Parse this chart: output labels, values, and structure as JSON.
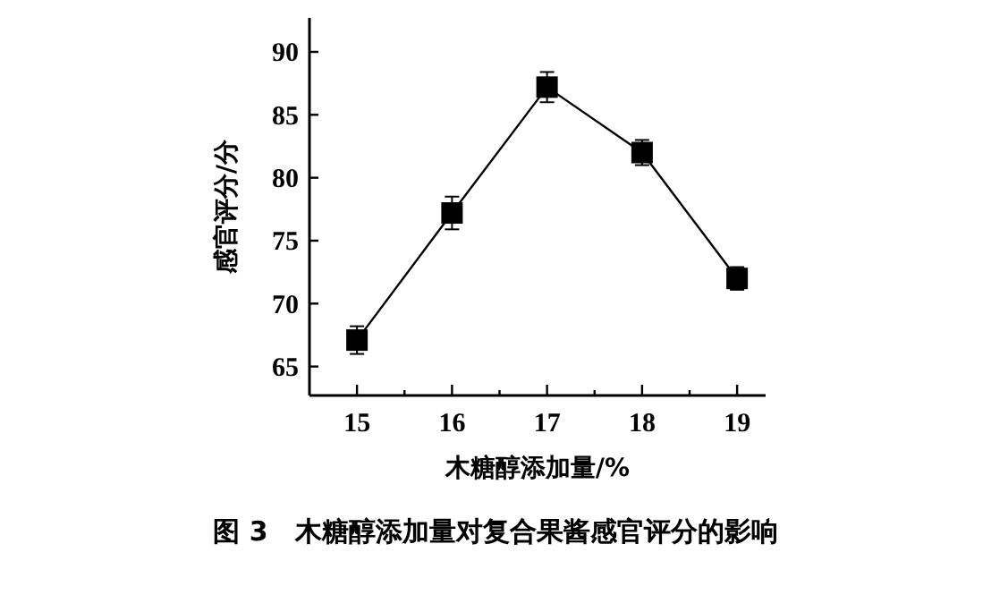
{
  "chart_data": {
    "type": "line",
    "xlabel": "木糖醇添加量/%",
    "ylabel": "感官评分/分",
    "annotations": [
      "图 3　木糖醇添加量对复合果酱感官评分的影响"
    ],
    "x": [
      15,
      16,
      17,
      18,
      19
    ],
    "series": [
      {
        "color": "#000000",
        "values": [
          67.1,
          77.2,
          87.2,
          82.0,
          72.0
        ],
        "errors": [
          1.1,
          1.3,
          1.2,
          1.0,
          0.9
        ]
      }
    ],
    "marker": "square",
    "line_style": "solid",
    "grid": false,
    "xlim": [
      14.5,
      19.3
    ],
    "xticks": [
      15,
      {
        "value": 15.5,
        "label": null
      },
      16,
      {
        "value": 16.5,
        "label": null
      },
      17,
      {
        "value": 17.5,
        "label": null
      },
      18,
      {
        "value": 18.5,
        "label": null
      },
      19
    ],
    "ylim": [
      62.7,
      92.7
    ],
    "yticks": [
      65,
      70,
      75,
      80,
      85,
      90
    ]
  }
}
